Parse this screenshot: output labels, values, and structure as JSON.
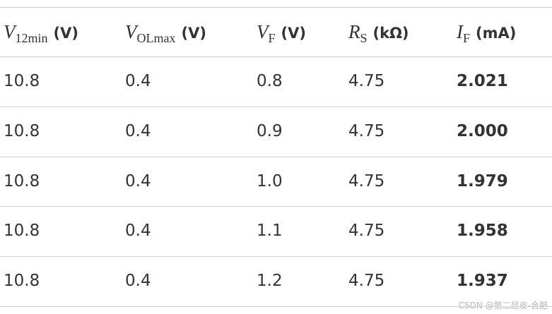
{
  "table": {
    "header": [
      {
        "symbol": "V",
        "sub": "12min",
        "unit": "(V)"
      },
      {
        "symbol": "V",
        "sub": "OLmax",
        "unit": "(V)"
      },
      {
        "symbol": "V",
        "sub": "F",
        "unit": "(V)"
      },
      {
        "symbol": "R",
        "sub": "S",
        "unit": "(kΩ)"
      },
      {
        "symbol": "I",
        "sub": "F",
        "unit": "(mA)"
      }
    ],
    "rows": [
      [
        "10.8",
        "0.4",
        "0.8",
        "4.75",
        "2.021"
      ],
      [
        "10.8",
        "0.4",
        "0.9",
        "4.75",
        "2.000"
      ],
      [
        "10.8",
        "0.4",
        "1.0",
        "4.75",
        "1.979"
      ],
      [
        "10.8",
        "0.4",
        "1.1",
        "4.75",
        "1.958"
      ],
      [
        "10.8",
        "0.4",
        "1.2",
        "4.75",
        "1.937"
      ]
    ]
  },
  "watermark": "CSDN @第二层皮-合肥"
}
